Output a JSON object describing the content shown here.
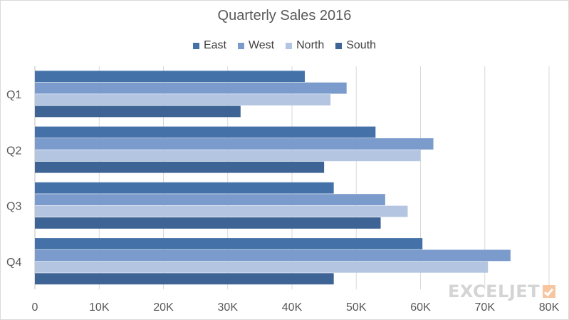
{
  "chart_data": {
    "type": "bar",
    "orientation": "horizontal",
    "title": "Quarterly Sales 2016",
    "categories": [
      "Q1",
      "Q2",
      "Q3",
      "Q4"
    ],
    "series": [
      {
        "name": "East",
        "color": "#4472a8",
        "values": [
          42000,
          53000,
          46500,
          60300
        ]
      },
      {
        "name": "West",
        "color": "#7a9bcc",
        "values": [
          48500,
          62000,
          54500,
          74000
        ]
      },
      {
        "name": "North",
        "color": "#b4c5e2",
        "values": [
          46000,
          60000,
          58000,
          70500
        ]
      },
      {
        "name": "South",
        "color": "#3d6494",
        "values": [
          32000,
          45000,
          53800,
          46500
        ]
      }
    ],
    "xlim": [
      0,
      80000
    ],
    "x_ticks": [
      {
        "value": 0,
        "label": "0"
      },
      {
        "value": 10000,
        "label": "10K"
      },
      {
        "value": 20000,
        "label": "20K"
      },
      {
        "value": 30000,
        "label": "30K"
      },
      {
        "value": 40000,
        "label": "40K"
      },
      {
        "value": 50000,
        "label": "50K"
      },
      {
        "value": 60000,
        "label": "60K"
      },
      {
        "value": 70000,
        "label": "70K"
      },
      {
        "value": 80000,
        "label": "80K"
      }
    ],
    "gridlines": "vertical",
    "legend_position": "top"
  },
  "watermark": {
    "text": "EXCELJET"
  }
}
